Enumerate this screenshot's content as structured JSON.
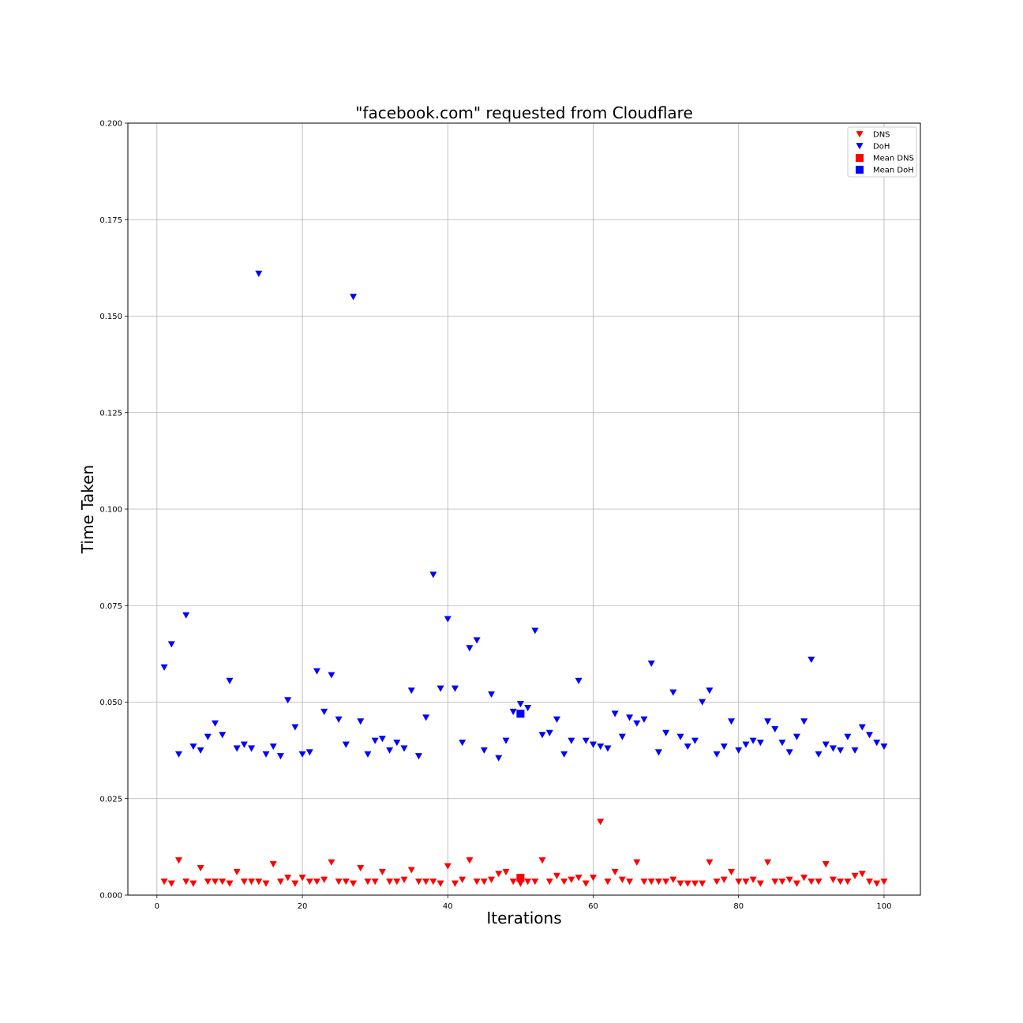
{
  "chart_data": {
    "type": "scatter",
    "title": "\"facebook.com\" requested from Cloudflare",
    "xlabel": "Iterations",
    "ylabel": "Time Taken",
    "xlim": [
      -4,
      105
    ],
    "ylim": [
      0,
      0.2
    ],
    "xticks": [
      0,
      20,
      40,
      60,
      80,
      100
    ],
    "yticks": [
      0.0,
      0.025,
      0.05,
      0.075,
      0.1,
      0.125,
      0.15,
      0.175,
      0.2
    ],
    "ytick_labels": [
      "0.000",
      "0.025",
      "0.050",
      "0.075",
      "0.100",
      "0.125",
      "0.150",
      "0.175",
      "0.200"
    ],
    "xtick_labels": [
      "0",
      "20",
      "40",
      "60",
      "80",
      "100"
    ],
    "grid": true,
    "legend_position": "top-right",
    "colors": {
      "dns": "#ff0000",
      "doh": "#0000ff"
    },
    "x": [
      1,
      2,
      3,
      4,
      5,
      6,
      7,
      8,
      9,
      10,
      11,
      12,
      13,
      14,
      15,
      16,
      17,
      18,
      19,
      20,
      21,
      22,
      23,
      24,
      25,
      26,
      27,
      28,
      29,
      30,
      31,
      32,
      33,
      34,
      35,
      36,
      37,
      38,
      39,
      40,
      41,
      42,
      43,
      44,
      45,
      46,
      47,
      48,
      49,
      50,
      51,
      52,
      53,
      54,
      55,
      56,
      57,
      58,
      59,
      60,
      61,
      62,
      63,
      64,
      65,
      66,
      67,
      68,
      69,
      70,
      71,
      72,
      73,
      74,
      75,
      76,
      77,
      78,
      79,
      80,
      81,
      82,
      83,
      84,
      85,
      86,
      87,
      88,
      89,
      90,
      91,
      92,
      93,
      94,
      95,
      96,
      97,
      98,
      99,
      100
    ],
    "series": [
      {
        "name": "DNS",
        "marker": "triangle-down",
        "values": [
          0.0035,
          0.003,
          0.009,
          0.0035,
          0.003,
          0.007,
          0.0035,
          0.0035,
          0.0035,
          0.003,
          0.006,
          0.0035,
          0.0035,
          0.0035,
          0.003,
          0.008,
          0.0035,
          0.0045,
          0.003,
          0.0045,
          0.0035,
          0.0035,
          0.004,
          0.0085,
          0.0035,
          0.0035,
          0.003,
          0.007,
          0.0035,
          0.0035,
          0.006,
          0.0035,
          0.0035,
          0.004,
          0.0065,
          0.0035,
          0.0035,
          0.0035,
          0.003,
          0.0075,
          0.003,
          0.004,
          0.009,
          0.0035,
          0.0035,
          0.004,
          0.0055,
          0.006,
          0.0035,
          0.003,
          0.0035,
          0.0035,
          0.009,
          0.0035,
          0.005,
          0.0035,
          0.004,
          0.0045,
          0.003,
          0.0045,
          0.019,
          0.0035,
          0.006,
          0.004,
          0.0035,
          0.0085,
          0.0035,
          0.0035,
          0.0035,
          0.0035,
          0.004,
          0.003,
          0.003,
          0.003,
          0.003,
          0.0085,
          0.0035,
          0.004,
          0.006,
          0.0035,
          0.0035,
          0.004,
          0.003,
          0.0085,
          0.0035,
          0.0035,
          0.004,
          0.003,
          0.0045,
          0.0035,
          0.0035,
          0.008,
          0.004,
          0.0035,
          0.0035,
          0.005,
          0.0055,
          0.0035,
          0.003,
          0.0035
        ]
      },
      {
        "name": "DoH",
        "marker": "triangle-down",
        "values": [
          0.059,
          0.065,
          0.0365,
          0.0725,
          0.0385,
          0.0375,
          0.041,
          0.0445,
          0.0415,
          0.0555,
          0.038,
          0.039,
          0.038,
          0.161,
          0.0365,
          0.0385,
          0.036,
          0.0505,
          0.0435,
          0.0365,
          0.037,
          0.058,
          0.0475,
          0.057,
          0.0455,
          0.039,
          0.155,
          0.045,
          0.0365,
          0.04,
          0.0405,
          0.0375,
          0.0395,
          0.038,
          0.053,
          0.036,
          0.046,
          0.083,
          0.0535,
          0.0715,
          0.0535,
          0.0395,
          0.064,
          0.066,
          0.0375,
          0.052,
          0.0355,
          0.04,
          0.0475,
          0.0495,
          0.0485,
          0.0685,
          0.0415,
          0.042,
          0.0455,
          0.0365,
          0.04,
          0.0555,
          0.04,
          0.039,
          0.0385,
          0.038,
          0.047,
          0.041,
          0.046,
          0.0445,
          0.0455,
          0.06,
          0.037,
          0.042,
          0.0525,
          0.041,
          0.0385,
          0.04,
          0.05,
          0.053,
          0.0365,
          0.0385,
          0.045,
          0.0375,
          0.039,
          0.04,
          0.0395,
          0.045,
          0.043,
          0.0395,
          0.037,
          0.041,
          0.045,
          0.061,
          0.0365,
          0.039,
          0.038,
          0.0375,
          0.041,
          0.0375,
          0.0435,
          0.0415,
          0.0395,
          0.0385
        ]
      },
      {
        "name": "Mean DNS",
        "marker": "square",
        "points": [
          [
            50,
            0.0045
          ]
        ]
      },
      {
        "name": "Mean DoH",
        "marker": "square",
        "points": [
          [
            50,
            0.047
          ]
        ]
      }
    ],
    "legend": [
      {
        "label": "DNS",
        "marker": "triangle-down",
        "color": "#ff0000"
      },
      {
        "label": "DoH",
        "marker": "triangle-down",
        "color": "#0000ff"
      },
      {
        "label": "Mean DNS",
        "marker": "square",
        "color": "#ff0000"
      },
      {
        "label": "Mean DoH",
        "marker": "square",
        "color": "#0000ff"
      }
    ]
  }
}
